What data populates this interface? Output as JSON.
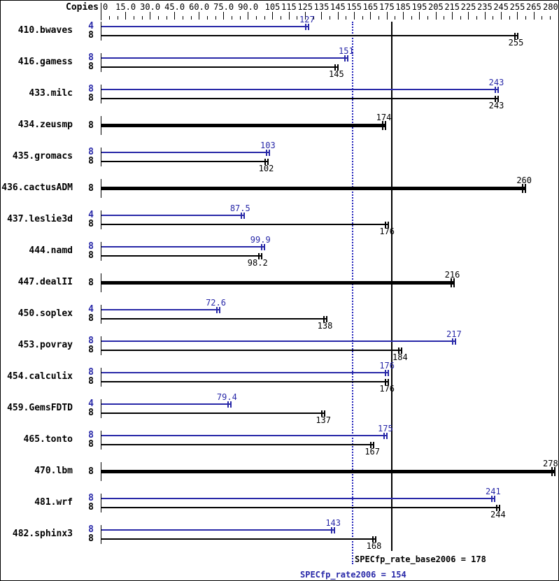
{
  "header": {
    "copies_label": "Copies"
  },
  "colors": {
    "peak_blue": "#2828a8",
    "base_black": "#000000",
    "dotted_line_blue": "#2222bb"
  },
  "chart_data": {
    "type": "bar",
    "orientation": "horizontal",
    "xlim": [
      0,
      280
    ],
    "grid": false,
    "axis": {
      "major_ticks": [
        {
          "value": 0,
          "label": "0"
        },
        {
          "value": 15,
          "label": "15.0"
        },
        {
          "value": 30,
          "label": "30.0"
        },
        {
          "value": 45,
          "label": "45.0"
        },
        {
          "value": 60,
          "label": "60.0"
        },
        {
          "value": 75,
          "label": "75.0"
        },
        {
          "value": 90,
          "label": "90.0"
        },
        {
          "value": 105,
          "label": "105"
        },
        {
          "value": 115,
          "label": "115"
        },
        {
          "value": 125,
          "label": "125"
        },
        {
          "value": 135,
          "label": "135"
        },
        {
          "value": 145,
          "label": "145"
        },
        {
          "value": 155,
          "label": "155"
        },
        {
          "value": 165,
          "label": "165"
        },
        {
          "value": 175,
          "label": "175"
        },
        {
          "value": 185,
          "label": "185"
        },
        {
          "value": 195,
          "label": "195"
        },
        {
          "value": 205,
          "label": "205"
        },
        {
          "value": 215,
          "label": "215"
        },
        {
          "value": 225,
          "label": "225"
        },
        {
          "value": 235,
          "label": "235"
        },
        {
          "value": 245,
          "label": "245"
        },
        {
          "value": 255,
          "label": "255"
        },
        {
          "value": 265,
          "label": "265"
        },
        {
          "value": 280,
          "label": "280"
        }
      ],
      "minor_step": 5
    },
    "benchmarks": [
      {
        "name": "410.bwaves",
        "bars": [
          {
            "series": "peak",
            "copies": 4,
            "value": 127,
            "label": "127"
          },
          {
            "series": "base",
            "copies": 8,
            "value": 255,
            "label": "255"
          }
        ]
      },
      {
        "name": "416.gamess",
        "bars": [
          {
            "series": "peak",
            "copies": 8,
            "value": 151,
            "label": "151"
          },
          {
            "series": "base",
            "copies": 8,
            "value": 145,
            "label": "145"
          }
        ]
      },
      {
        "name": "433.milc",
        "bars": [
          {
            "series": "peak",
            "copies": 8,
            "value": 243,
            "label": "243"
          },
          {
            "series": "base",
            "copies": 8,
            "value": 243,
            "label": "243"
          }
        ]
      },
      {
        "name": "434.zeusmp",
        "bars": [
          {
            "series": "base_peak",
            "copies": 8,
            "value": 174,
            "label": "174"
          }
        ]
      },
      {
        "name": "435.gromacs",
        "bars": [
          {
            "series": "peak",
            "copies": 8,
            "value": 103,
            "label": "103"
          },
          {
            "series": "base",
            "copies": 8,
            "value": 102,
            "label": "102"
          }
        ]
      },
      {
        "name": "436.cactusADM",
        "bars": [
          {
            "series": "base_peak",
            "copies": 8,
            "value": 260,
            "label": "260"
          }
        ]
      },
      {
        "name": "437.leslie3d",
        "bars": [
          {
            "series": "peak",
            "copies": 4,
            "value": 87.5,
            "label": "87.5"
          },
          {
            "series": "base",
            "copies": 8,
            "value": 176,
            "label": "176"
          }
        ]
      },
      {
        "name": "444.namd",
        "bars": [
          {
            "series": "peak",
            "copies": 8,
            "value": 99.9,
            "label": "99.9"
          },
          {
            "series": "base",
            "copies": 8,
            "value": 98.2,
            "label": "98.2"
          }
        ]
      },
      {
        "name": "447.dealII",
        "bars": [
          {
            "series": "base_peak",
            "copies": 8,
            "value": 216,
            "label": "216"
          }
        ]
      },
      {
        "name": "450.soplex",
        "bars": [
          {
            "series": "peak",
            "copies": 4,
            "value": 72.6,
            "label": "72.6"
          },
          {
            "series": "base",
            "copies": 8,
            "value": 138,
            "label": "138"
          }
        ]
      },
      {
        "name": "453.povray",
        "bars": [
          {
            "series": "peak",
            "copies": 8,
            "value": 217,
            "label": "217"
          },
          {
            "series": "base",
            "copies": 8,
            "value": 184,
            "label": "184"
          }
        ]
      },
      {
        "name": "454.calculix",
        "bars": [
          {
            "series": "peak",
            "copies": 8,
            "value": 176,
            "label": "176"
          },
          {
            "series": "base",
            "copies": 8,
            "value": 176,
            "label": "176"
          }
        ]
      },
      {
        "name": "459.GemsFDTD",
        "bars": [
          {
            "series": "peak",
            "copies": 4,
            "value": 79.4,
            "label": "79.4"
          },
          {
            "series": "base",
            "copies": 8,
            "value": 137,
            "label": "137"
          }
        ]
      },
      {
        "name": "465.tonto",
        "bars": [
          {
            "series": "peak",
            "copies": 8,
            "value": 175,
            "label": "175"
          },
          {
            "series": "base",
            "copies": 8,
            "value": 167,
            "label": "167"
          }
        ]
      },
      {
        "name": "470.lbm",
        "bars": [
          {
            "series": "base_peak",
            "copies": 8,
            "value": 278,
            "label": "278"
          }
        ]
      },
      {
        "name": "481.wrf",
        "bars": [
          {
            "series": "peak",
            "copies": 8,
            "value": 241,
            "label": "241"
          },
          {
            "series": "base",
            "copies": 8,
            "value": 244,
            "label": "244"
          }
        ]
      },
      {
        "name": "482.sphinx3",
        "bars": [
          {
            "series": "peak",
            "copies": 8,
            "value": 143,
            "label": "143"
          },
          {
            "series": "base",
            "copies": 8,
            "value": 168,
            "label": "168"
          }
        ]
      }
    ],
    "reference_lines": [
      {
        "name": "SPECfp_rate_base2006",
        "value": 178,
        "style": "solid",
        "label": "SPECfp_rate_base2006 = 178"
      },
      {
        "name": "SPECfp_rate2006",
        "value": 154,
        "style": "dotted",
        "label": "SPECfp_rate2006 = 154"
      }
    ]
  }
}
